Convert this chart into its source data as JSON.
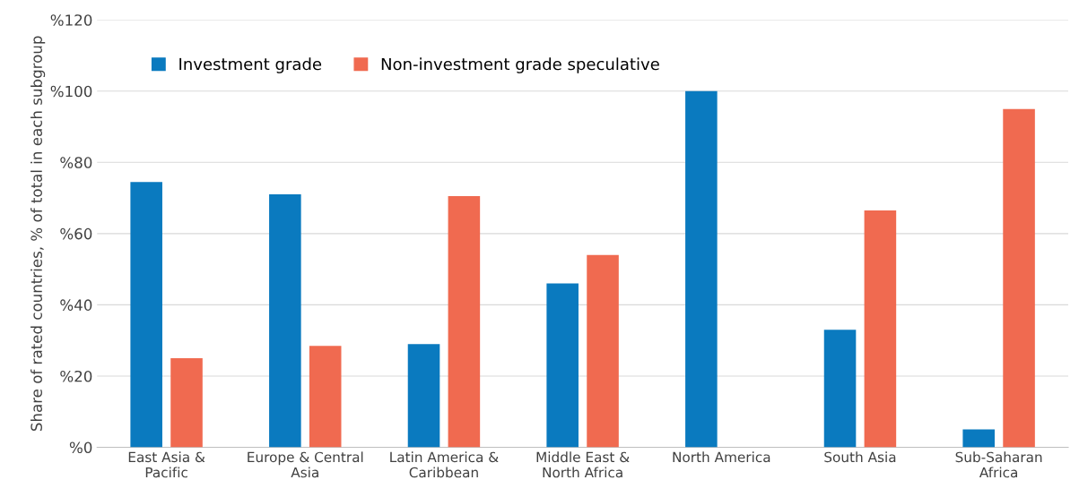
{
  "chart_data": {
    "type": "bar",
    "ylabel": "Share of rated countries, % of total in each subgroup",
    "categories": [
      "East Asia & Pacific",
      "Europe & Central Asia",
      "Latin America & Caribbean",
      "Middle East & North Africa",
      "North America",
      "South Asia",
      "Sub-Saharan Africa"
    ],
    "series": [
      {
        "name": "Investment grade",
        "color": "#0a7abf",
        "values": [
          74.5,
          71,
          29,
          46,
          100,
          33,
          5
        ]
      },
      {
        "name": "Non-investment grade speculative",
        "color": "#f06a50",
        "values": [
          25,
          28.5,
          70.5,
          54,
          0,
          66.5,
          95
        ]
      }
    ],
    "ylim": [
      0,
      120
    ],
    "yticks": [
      {
        "value": 0,
        "label": "%0"
      },
      {
        "value": 20,
        "label": "%20"
      },
      {
        "value": 40,
        "label": "%40"
      },
      {
        "value": 60,
        "label": "%60"
      },
      {
        "value": 80,
        "label": "%80"
      },
      {
        "value": 100,
        "label": "%100"
      },
      {
        "value": 120,
        "label": "%120"
      }
    ],
    "grid": "y",
    "legend": "top left"
  }
}
